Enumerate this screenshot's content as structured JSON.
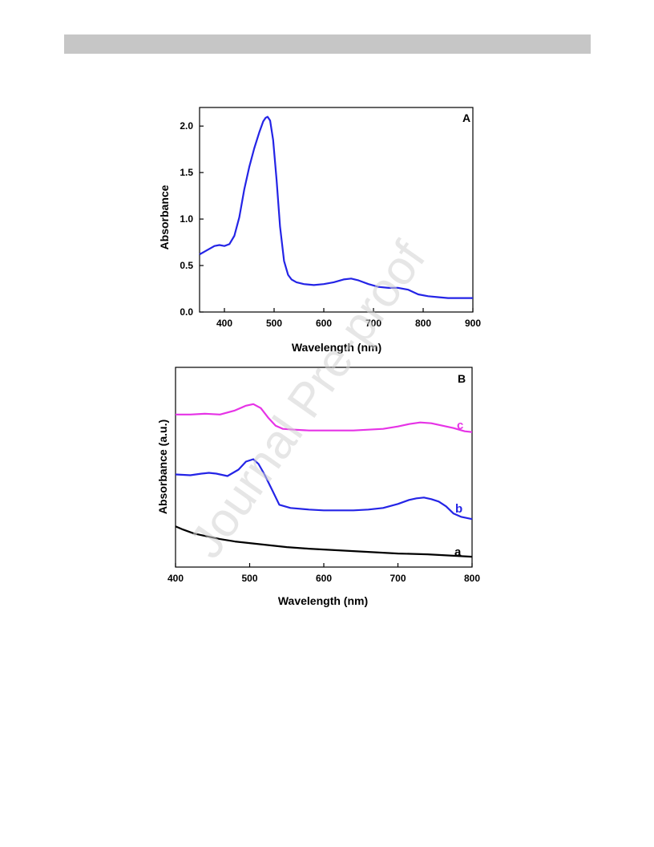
{
  "watermark": "Journal Pre-proof",
  "colors": {
    "header_bar": "#c6c6c6",
    "blue": "#2424e6",
    "magenta": "#e633e6",
    "black": "#000000"
  },
  "chart_data": [
    {
      "type": "line",
      "panel": "A",
      "title": "",
      "xlabel": "Wavelength (nm)",
      "ylabel": "Absorbance",
      "xlim": [
        350,
        900
      ],
      "ylim": [
        0.0,
        2.2
      ],
      "xticks": [
        400,
        500,
        600,
        700,
        800,
        900
      ],
      "xtick_labels": [
        "400",
        "500",
        "600",
        "700",
        "800",
        "900"
      ],
      "yticks": [
        0.0,
        0.5,
        1.0,
        1.5,
        2.0
      ],
      "ytick_labels": [
        "0.0",
        "0.5",
        "1.0",
        "1.5",
        "2.0"
      ],
      "series": [
        {
          "color": "#2424e6",
          "x": [
            350,
            360,
            370,
            380,
            390,
            400,
            410,
            420,
            430,
            440,
            450,
            460,
            470,
            478,
            483,
            487,
            492,
            498,
            505,
            512,
            520,
            528,
            535,
            545,
            560,
            580,
            600,
            620,
            640,
            655,
            670,
            690,
            710,
            730,
            750,
            770,
            790,
            810,
            830,
            850,
            870,
            900
          ],
          "y": [
            0.62,
            0.65,
            0.68,
            0.71,
            0.72,
            0.71,
            0.73,
            0.82,
            1.02,
            1.32,
            1.56,
            1.76,
            1.93,
            2.05,
            2.09,
            2.1,
            2.06,
            1.85,
            1.42,
            0.92,
            0.55,
            0.4,
            0.35,
            0.32,
            0.3,
            0.29,
            0.3,
            0.32,
            0.35,
            0.36,
            0.34,
            0.3,
            0.27,
            0.26,
            0.26,
            0.24,
            0.19,
            0.17,
            0.16,
            0.15,
            0.15,
            0.15
          ]
        }
      ]
    },
    {
      "type": "line",
      "panel": "B",
      "title": "",
      "xlabel": "Wavelength (nm)",
      "ylabel": "Absorbance (a.u.)",
      "xlim": [
        400,
        800
      ],
      "ylim": [
        0,
        100
      ],
      "y_ticks_shown": false,
      "xticks": [
        400,
        500,
        600,
        700,
        800
      ],
      "xtick_labels": [
        "400",
        "500",
        "600",
        "700",
        "800"
      ],
      "series": [
        {
          "name": "c",
          "color": "#e633e6",
          "x": [
            400,
            420,
            440,
            460,
            480,
            495,
            505,
            515,
            525,
            535,
            545,
            560,
            580,
            600,
            620,
            640,
            660,
            680,
            700,
            715,
            730,
            745,
            760,
            775,
            790,
            800
          ],
          "y": [
            76.4,
            76.4,
            76.8,
            76.4,
            78.4,
            80.8,
            81.6,
            79.6,
            74.8,
            70.8,
            69.2,
            68.8,
            68.4,
            68.4,
            68.4,
            68.4,
            68.8,
            69.2,
            70.4,
            71.6,
            72.4,
            72,
            70.8,
            69.6,
            68,
            67.6
          ]
        },
        {
          "name": "b",
          "color": "#2424e6",
          "x": [
            400,
            420,
            435,
            445,
            455,
            470,
            485,
            495,
            505,
            512,
            520,
            530,
            540,
            555,
            580,
            600,
            620,
            640,
            660,
            680,
            700,
            715,
            725,
            735,
            745,
            755,
            765,
            775,
            785,
            800
          ],
          "y": [
            46.4,
            46,
            46.8,
            47.2,
            46.8,
            45.6,
            48.8,
            52.8,
            54,
            51.6,
            46.4,
            38.8,
            31.2,
            29.6,
            28.8,
            28.4,
            28.4,
            28.4,
            28.8,
            29.6,
            31.6,
            33.6,
            34.4,
            34.8,
            34,
            32.8,
            30.4,
            26.8,
            25.2,
            24
          ]
        },
        {
          "name": "a",
          "color": "#000000",
          "x": [
            400,
            410,
            425,
            440,
            460,
            480,
            500,
            520,
            550,
            580,
            620,
            660,
            700,
            740,
            780,
            800
          ],
          "y": [
            20.4,
            18.8,
            16.8,
            15.6,
            14,
            12.8,
            12,
            11.2,
            10,
            9.2,
            8.4,
            7.6,
            6.8,
            6.4,
            5.6,
            5.2
          ]
        }
      ]
    }
  ]
}
